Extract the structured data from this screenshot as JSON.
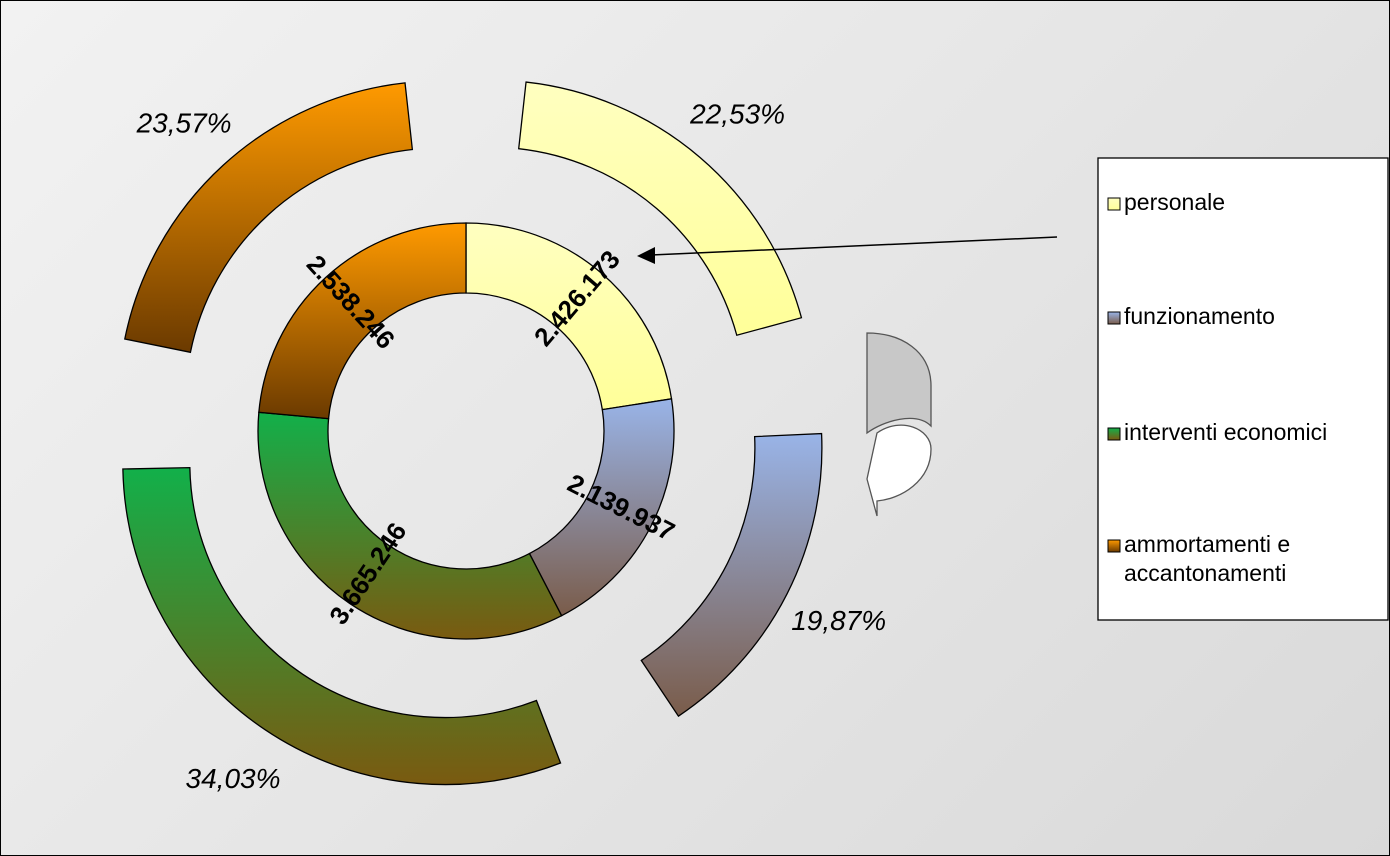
{
  "chart_data": {
    "type": "pie",
    "legend_position": "right",
    "series": [
      {
        "name": "personale",
        "value": 2426173,
        "value_label": "2.426.173",
        "percent_label": "22,53%",
        "color_top": "#ffffc0",
        "color_bottom": "#ffff99"
      },
      {
        "name": "funzionamento",
        "value": 2139937,
        "value_label": "2.139.937",
        "percent_label": "19,87%",
        "color_top": "#99b4e8",
        "color_bottom": "#7a5c4a"
      },
      {
        "name": "interventi economici",
        "value": 3665246,
        "value_label": "3.665.246",
        "percent_label": "34,03%",
        "color_top": "#12b04a",
        "color_bottom": "#7a5a10"
      },
      {
        "name": "ammortamenti e accantonamenti",
        "value": 2538246,
        "value_label": "2.538.246",
        "percent_label": "23,57%",
        "color_top": "#ff9a00",
        "color_bottom": "#6b3a00"
      }
    ],
    "legend": [
      "personale",
      "funzionamento",
      "interventi economici",
      "ammortamenti e accantonamenti"
    ]
  }
}
